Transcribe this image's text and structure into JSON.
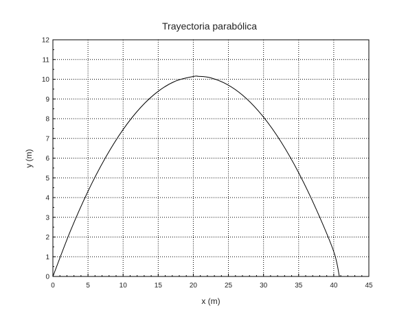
{
  "chart_data": {
    "type": "line",
    "title": "Trayectoria parabólica",
    "xlabel": "x (m)",
    "ylabel": "y (m)",
    "xlim": [
      0,
      45
    ],
    "ylim": [
      0,
      12
    ],
    "xticks": [
      0,
      5,
      10,
      15,
      20,
      25,
      30,
      35,
      40,
      45
    ],
    "yticks": [
      0,
      1,
      2,
      3,
      4,
      5,
      6,
      7,
      8,
      9,
      10,
      11,
      12
    ],
    "grid": true,
    "grid_style": "dotted",
    "legend": "none",
    "line_color": "#000000",
    "series": [
      {
        "x": [
          0,
          2.5,
          5,
          7.5,
          10,
          12.5,
          15,
          17.5,
          20,
          20.7,
          22.5,
          25,
          27.5,
          30,
          32.5,
          35,
          37.5,
          40,
          40.8
        ],
        "y": [
          0,
          2.31,
          4.32,
          6.03,
          7.45,
          8.57,
          9.39,
          9.91,
          10.14,
          10.15,
          10.07,
          9.7,
          9.04,
          8.08,
          6.82,
          5.26,
          3.41,
          1.26,
          0
        ]
      }
    ]
  }
}
